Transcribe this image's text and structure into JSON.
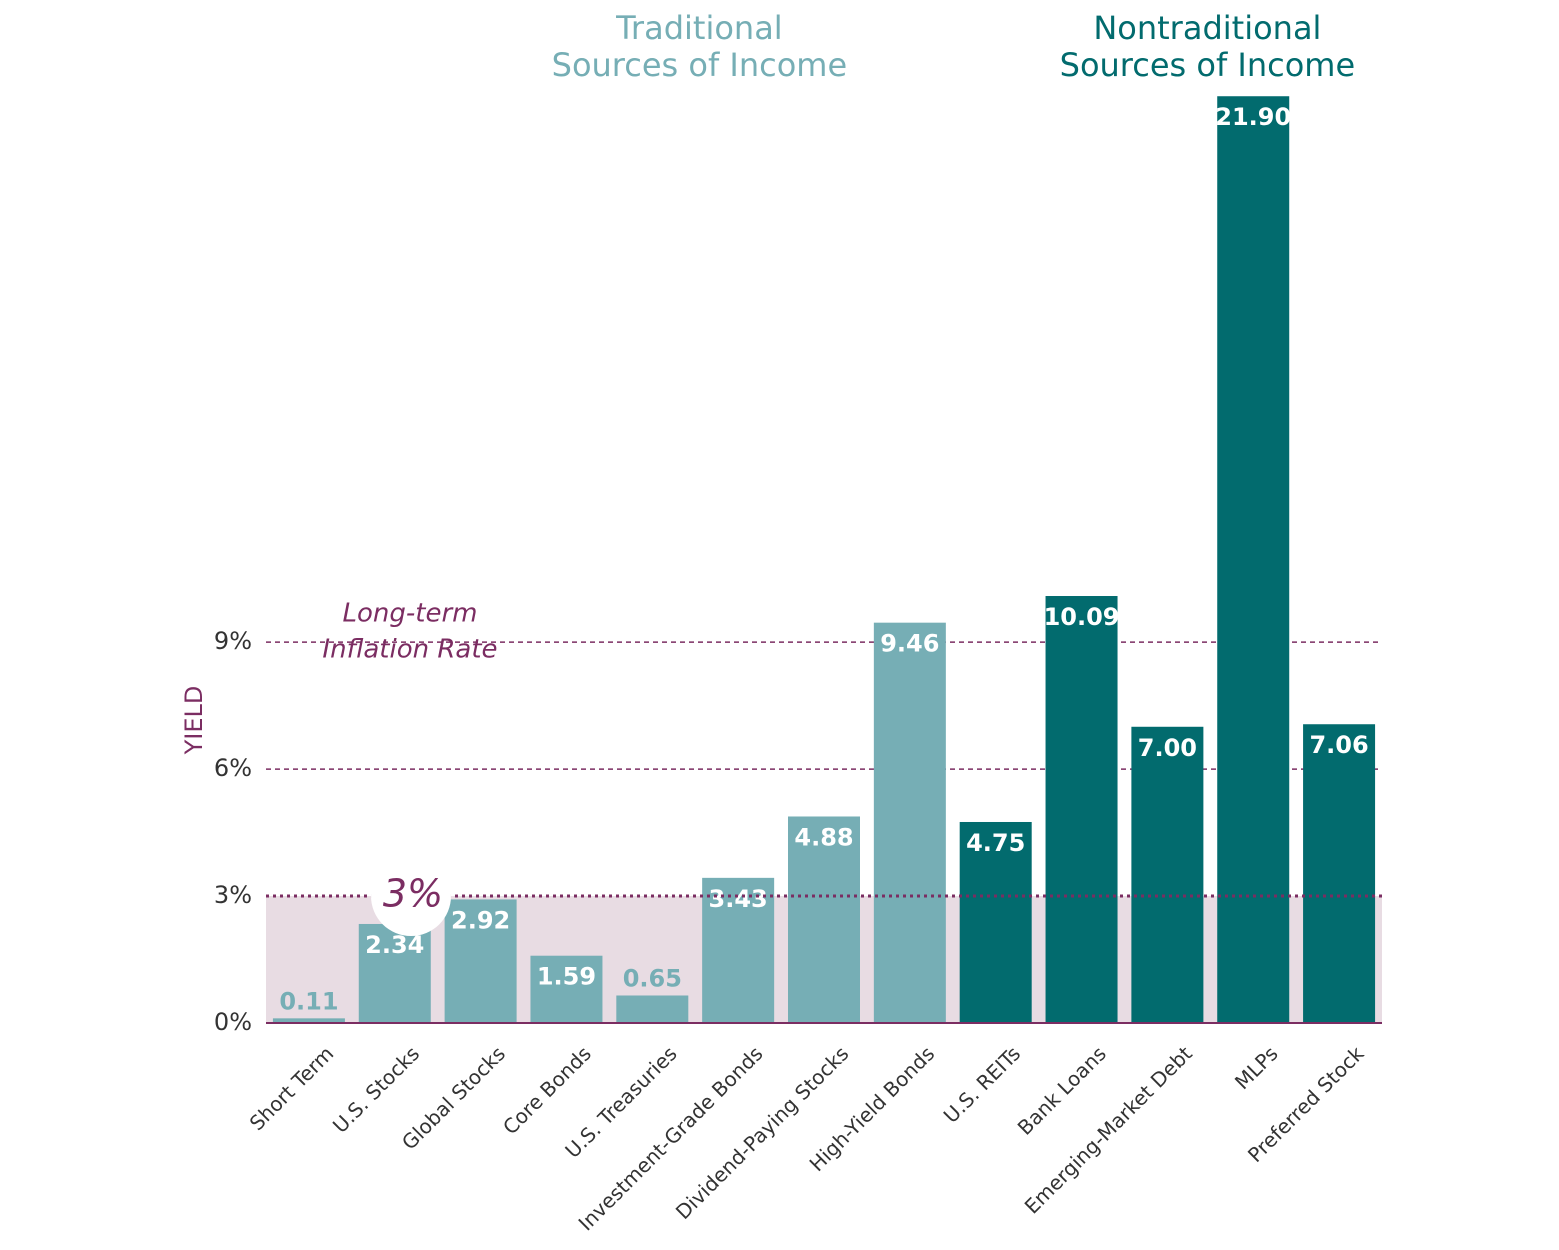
{
  "chart_data": {
    "type": "bar",
    "y_label": "YIELD",
    "categories": [
      "Short Term",
      "U.S. Stocks",
      "Global Stocks",
      "Core Bonds",
      "U.S. Treasuries",
      "Investment-Grade Bonds",
      "Dividend-Paying Stocks",
      "High-Yield Bonds",
      "U.S. REITs",
      "Bank Loans",
      "Emerging-Market Debt",
      "MLPs",
      "Preferred Stock"
    ],
    "series": [
      {
        "name": [
          "Traditional",
          "Sources of Income"
        ],
        "color": "#76aeb5",
        "values": [
          0.11,
          2.34,
          2.92,
          1.59,
          0.65,
          3.43,
          4.88,
          9.46,
          null,
          null,
          null,
          null,
          null
        ],
        "value_labels": [
          "0.11",
          "2.34",
          "2.92",
          "1.59",
          "0.65",
          "3.43",
          "4.88",
          "9.46",
          null,
          null,
          null,
          null,
          null
        ]
      },
      {
        "name": [
          "Nontraditional",
          "Sources of Income"
        ],
        "color": "#026b6e",
        "values": [
          null,
          null,
          null,
          null,
          null,
          null,
          null,
          null,
          4.75,
          10.09,
          7.0,
          21.9,
          7.06
        ],
        "value_labels": [
          null,
          null,
          null,
          null,
          null,
          null,
          null,
          null,
          "4.75",
          "10.09",
          "7.00",
          "21.90",
          "7.06"
        ]
      }
    ],
    "ylim": [
      0,
      22
    ],
    "yticks": [
      {
        "value": 0,
        "label": "0%"
      },
      {
        "value": 3,
        "label": "3%"
      },
      {
        "value": 6,
        "label": "6%"
      },
      {
        "value": 9,
        "label": "9%"
      }
    ],
    "grid": true,
    "inflation": {
      "value": 3,
      "label": "3%",
      "text": [
        "Long-term",
        "Inflation Rate"
      ],
      "color": "#7b2d62",
      "band_color": "#e8dce3"
    }
  }
}
